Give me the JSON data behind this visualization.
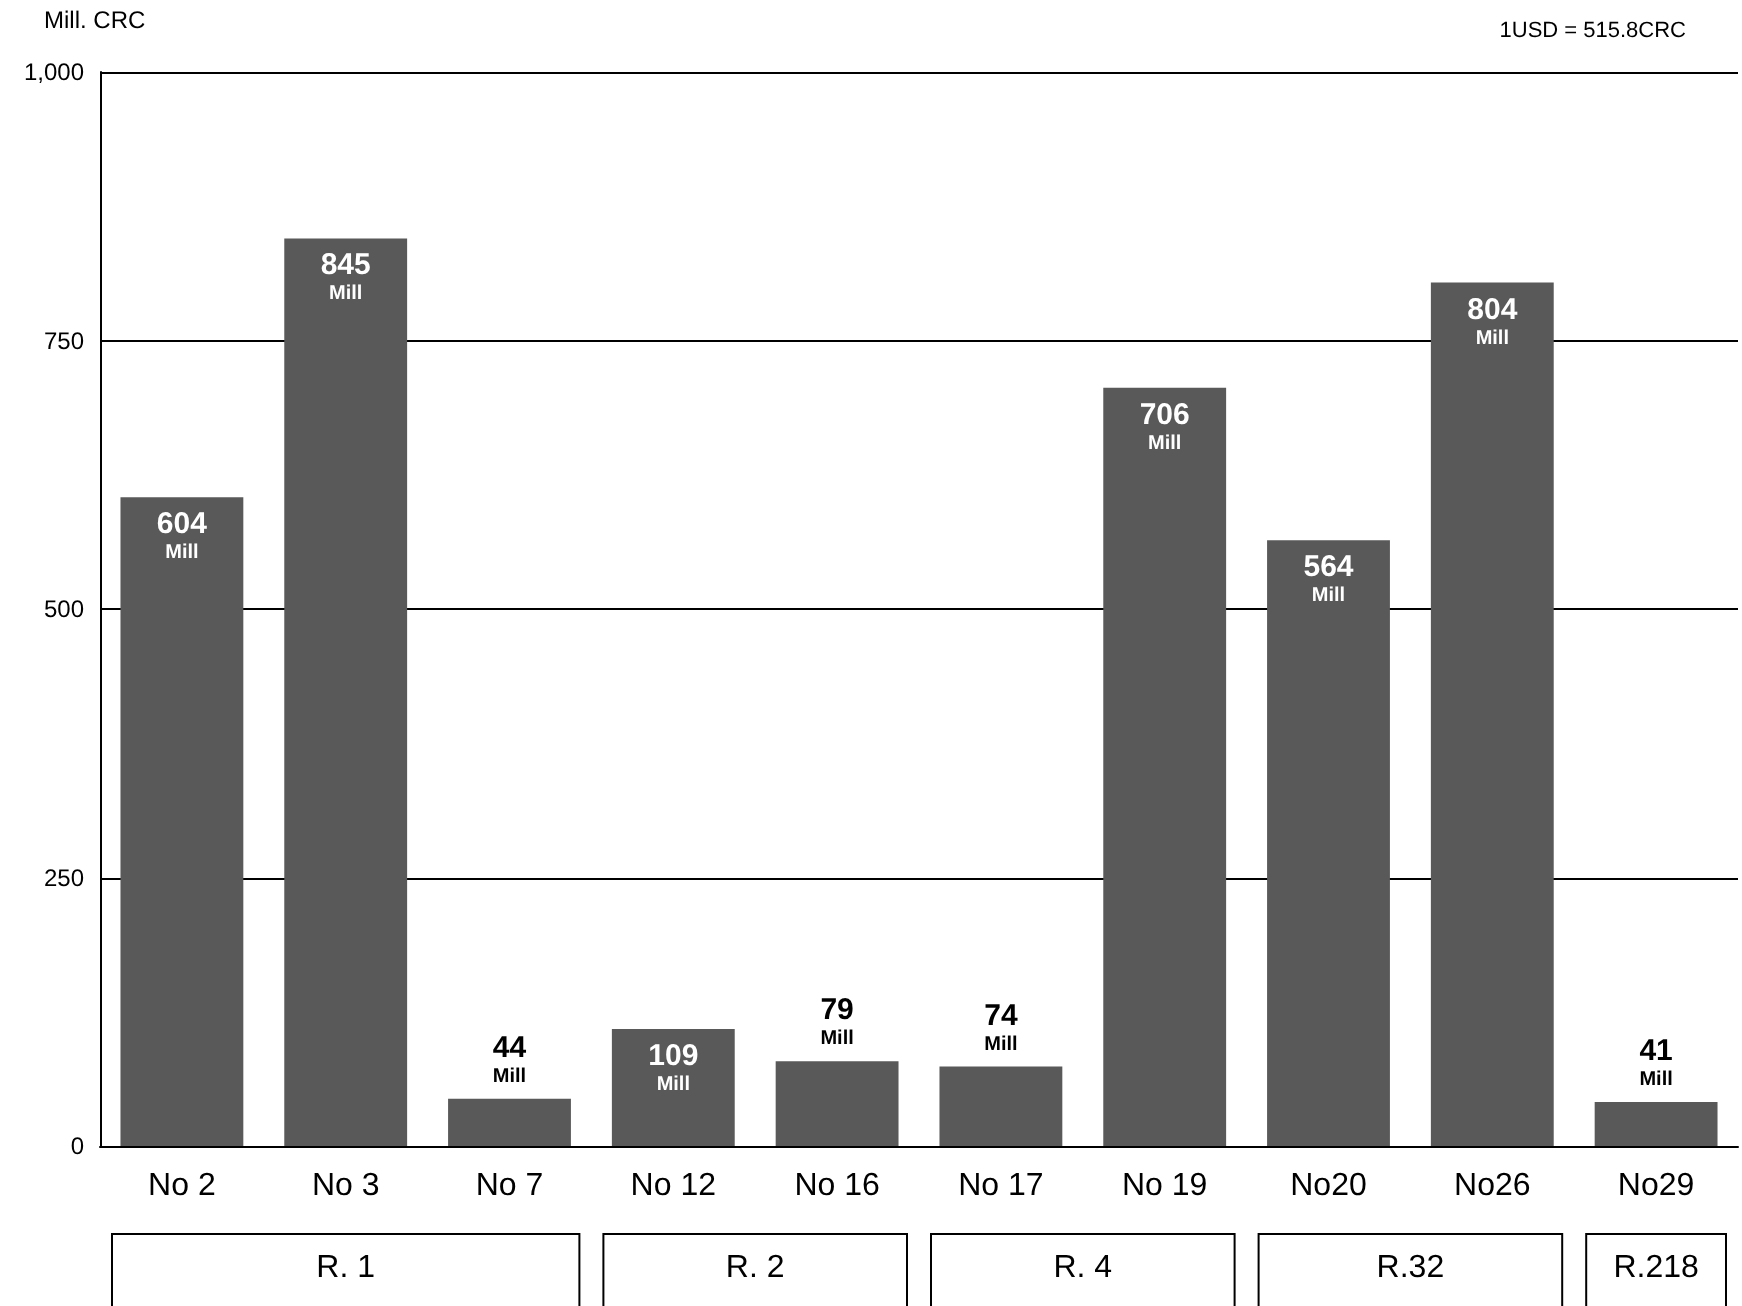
{
  "chart_data": {
    "type": "bar",
    "ylabel": "Mill. CRC",
    "categories": [
      "No 2",
      "No 3",
      "No 7",
      "No 12",
      "No 16",
      "No 17",
      "No 19",
      "No20",
      "No26",
      "No29"
    ],
    "values": [
      604,
      845,
      44,
      109,
      79,
      74,
      706,
      564,
      804,
      41
    ],
    "value_labels": [
      "604\nMill",
      "845\nMill",
      "44\nMill",
      "109\nMill",
      "79\nMill",
      "74\nMill",
      "706\nMill",
      "564\nMill",
      "804\nMill",
      "41\nMill"
    ],
    "color": "#595959",
    "ylim": [
      0,
      1000
    ],
    "yticks": [
      0,
      250,
      500,
      750,
      {
        "value": 1000,
        "label": "1,000"
      }
    ],
    "grid": "y",
    "annotations": [
      "1USD = 515.8CRC",
      "R. 1",
      "R. 2",
      "R. 4",
      "R.32",
      "R.218"
    ]
  }
}
